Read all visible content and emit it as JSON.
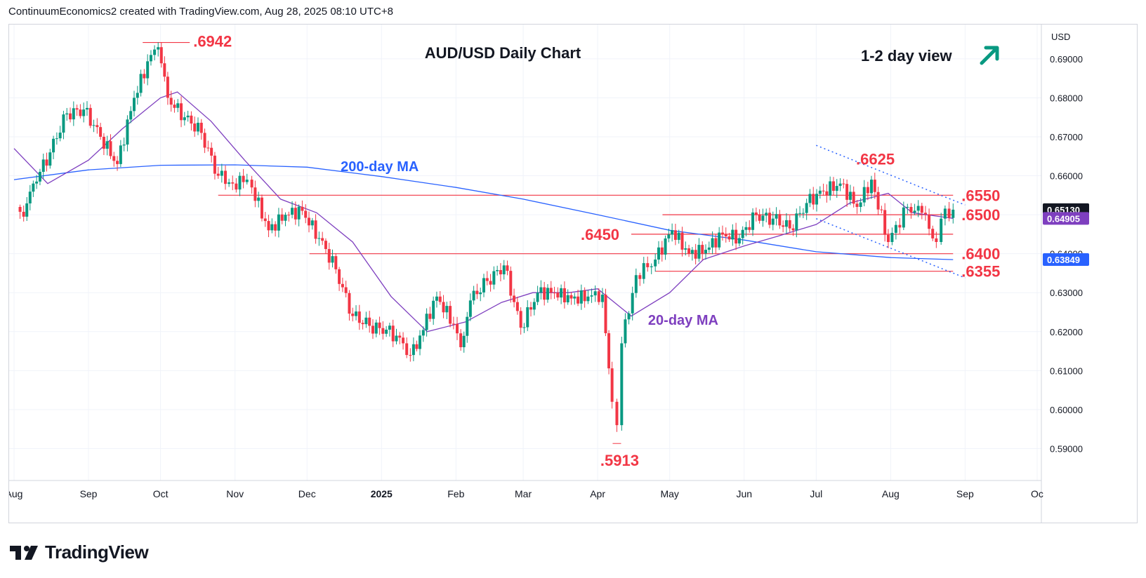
{
  "header": {
    "attribution": "ContinuumEconomics2 created with TradingView.com, Aug 28, 2025 08:10 UTC+8"
  },
  "brand": {
    "name": "TradingView",
    "logo_icon": "tradingview-logo-icon"
  },
  "colors": {
    "up": "#089981",
    "down": "#f23645",
    "ma200": "#2962ff",
    "ma20": "#7e3fbf",
    "level": "#f23645",
    "annotation": "#f23645",
    "channel": "#2962ff",
    "arrow": "#089981",
    "grid": "#f0f3fa",
    "axis_text": "#131722"
  },
  "chart_data": {
    "type": "candlestick",
    "title": "AUD/USD Daily Chart",
    "subtitle": "1-2 day view",
    "view_icon": "arrow-up-right-icon",
    "currency_label": "USD",
    "ylim": [
      0.5818,
      0.6988
    ],
    "y_ticks": [
      {
        "value": 0.69,
        "label": "0.69000"
      },
      {
        "value": 0.68,
        "label": "0.68000"
      },
      {
        "value": 0.67,
        "label": "0.67000"
      },
      {
        "value": 0.66,
        "label": "0.66000"
      },
      {
        "value": 0.65,
        "label": "0.65000"
      },
      {
        "value": 0.64,
        "label": "0.64000"
      },
      {
        "value": 0.63,
        "label": "0.63000"
      },
      {
        "value": 0.62,
        "label": "0.62000"
      },
      {
        "value": 0.61,
        "label": "0.61000"
      },
      {
        "value": 0.6,
        "label": "0.60000"
      },
      {
        "value": 0.59,
        "label": "0.59000"
      }
    ],
    "x_ticks": [
      {
        "date": "2024-08-01",
        "label": "Aug"
      },
      {
        "date": "2024-09-01",
        "label": "Sep"
      },
      {
        "date": "2024-10-01",
        "label": "Oct"
      },
      {
        "date": "2024-11-01",
        "label": "Nov"
      },
      {
        "date": "2024-12-01",
        "label": "Dec"
      },
      {
        "date": "2025-01-01",
        "label": "2025"
      },
      {
        "date": "2025-02-01",
        "label": "Feb"
      },
      {
        "date": "2025-03-01",
        "label": "Mar"
      },
      {
        "date": "2025-04-01",
        "label": "Apr"
      },
      {
        "date": "2025-05-01",
        "label": "May"
      },
      {
        "date": "2025-06-01",
        "label": "Jun"
      },
      {
        "date": "2025-07-01",
        "label": "Jul"
      },
      {
        "date": "2025-08-01",
        "label": "Aug"
      },
      {
        "date": "2025-09-01",
        "label": "Sep"
      },
      {
        "date": "2025-10-01",
        "label": "Oc"
      }
    ],
    "closes": [
      {
        "date": "2024-08-02",
        "close": 0.652
      },
      {
        "date": "2024-08-05",
        "close": 0.6495
      },
      {
        "date": "2024-08-09",
        "close": 0.658
      },
      {
        "date": "2024-08-16",
        "close": 0.666
      },
      {
        "date": "2024-08-23",
        "close": 0.676
      },
      {
        "date": "2024-08-30",
        "close": 0.677
      },
      {
        "date": "2024-09-06",
        "close": 0.67
      },
      {
        "date": "2024-09-13",
        "close": 0.663
      },
      {
        "date": "2024-09-20",
        "close": 0.68
      },
      {
        "date": "2024-09-27",
        "close": 0.691
      },
      {
        "date": "2024-09-30",
        "close": 0.693
      },
      {
        "date": "2024-10-04",
        "close": 0.68
      },
      {
        "date": "2024-10-11",
        "close": 0.675
      },
      {
        "date": "2024-10-18",
        "close": 0.671
      },
      {
        "date": "2024-10-25",
        "close": 0.66
      },
      {
        "date": "2024-10-31",
        "close": 0.658
      },
      {
        "date": "2024-11-06",
        "close": 0.659
      },
      {
        "date": "2024-11-08",
        "close": 0.657
      },
      {
        "date": "2024-11-15",
        "close": 0.646
      },
      {
        "date": "2024-11-22",
        "close": 0.65
      },
      {
        "date": "2024-11-29",
        "close": 0.651
      },
      {
        "date": "2024-12-06",
        "close": 0.644
      },
      {
        "date": "2024-12-13",
        "close": 0.636
      },
      {
        "date": "2024-12-20",
        "close": 0.624
      },
      {
        "date": "2024-12-27",
        "close": 0.6215
      },
      {
        "date": "2025-01-03",
        "close": 0.6205
      },
      {
        "date": "2025-01-10",
        "close": 0.617
      },
      {
        "date": "2025-01-13",
        "close": 0.614
      },
      {
        "date": "2025-01-17",
        "close": 0.619
      },
      {
        "date": "2025-01-24",
        "close": 0.629
      },
      {
        "date": "2025-01-31",
        "close": 0.622
      },
      {
        "date": "2025-02-03",
        "close": 0.616
      },
      {
        "date": "2025-02-07",
        "close": 0.628
      },
      {
        "date": "2025-02-14",
        "close": 0.633
      },
      {
        "date": "2025-02-21",
        "close": 0.637
      },
      {
        "date": "2025-02-28",
        "close": 0.621
      },
      {
        "date": "2025-03-07",
        "close": 0.63
      },
      {
        "date": "2025-03-14",
        "close": 0.63
      },
      {
        "date": "2025-03-21",
        "close": 0.6285
      },
      {
        "date": "2025-03-28",
        "close": 0.629
      },
      {
        "date": "2025-04-03",
        "close": 0.6295
      },
      {
        "date": "2025-04-07",
        "close": 0.602
      },
      {
        "date": "2025-04-09",
        "close": 0.596
      },
      {
        "date": "2025-04-11",
        "close": 0.617
      },
      {
        "date": "2025-04-17",
        "close": 0.6345
      },
      {
        "date": "2025-04-25",
        "close": 0.6385
      },
      {
        "date": "2025-05-02",
        "close": 0.646
      },
      {
        "date": "2025-05-09",
        "close": 0.64
      },
      {
        "date": "2025-05-16",
        "close": 0.641
      },
      {
        "date": "2025-05-23",
        "close": 0.645
      },
      {
        "date": "2025-05-30",
        "close": 0.644
      },
      {
        "date": "2025-06-06",
        "close": 0.65
      },
      {
        "date": "2025-06-13",
        "close": 0.649
      },
      {
        "date": "2025-06-20",
        "close": 0.6465
      },
      {
        "date": "2025-06-27",
        "close": 0.653
      },
      {
        "date": "2025-07-04",
        "close": 0.656
      },
      {
        "date": "2025-07-11",
        "close": 0.658
      },
      {
        "date": "2025-07-18",
        "close": 0.652
      },
      {
        "date": "2025-07-24",
        "close": 0.659
      },
      {
        "date": "2025-07-31",
        "close": 0.643
      },
      {
        "date": "2025-08-08",
        "close": 0.652
      },
      {
        "date": "2025-08-14",
        "close": 0.6505
      },
      {
        "date": "2025-08-20",
        "close": 0.643
      },
      {
        "date": "2025-08-22",
        "close": 0.649
      },
      {
        "date": "2025-08-27",
        "close": 0.6513
      }
    ],
    "ma_200": [
      {
        "date": "2024-08-01",
        "value": 0.659
      },
      {
        "date": "2024-09-01",
        "value": 0.6615
      },
      {
        "date": "2024-10-01",
        "value": 0.6627
      },
      {
        "date": "2024-11-01",
        "value": 0.6628
      },
      {
        "date": "2024-12-01",
        "value": 0.6622
      },
      {
        "date": "2025-01-01",
        "value": 0.6598
      },
      {
        "date": "2025-02-01",
        "value": 0.657
      },
      {
        "date": "2025-03-01",
        "value": 0.654
      },
      {
        "date": "2025-04-01",
        "value": 0.65
      },
      {
        "date": "2025-05-01",
        "value": 0.646
      },
      {
        "date": "2025-06-01",
        "value": 0.6435
      },
      {
        "date": "2025-07-01",
        "value": 0.6405
      },
      {
        "date": "2025-08-01",
        "value": 0.639
      },
      {
        "date": "2025-08-27",
        "value": 0.63849
      }
    ],
    "ma_20": [
      {
        "date": "2024-08-01",
        "value": 0.667
      },
      {
        "date": "2024-08-15",
        "value": 0.658
      },
      {
        "date": "2024-09-01",
        "value": 0.664
      },
      {
        "date": "2024-09-15",
        "value": 0.672
      },
      {
        "date": "2024-10-01",
        "value": 0.68
      },
      {
        "date": "2024-10-08",
        "value": 0.6815
      },
      {
        "date": "2024-10-22",
        "value": 0.674
      },
      {
        "date": "2024-11-05",
        "value": 0.664
      },
      {
        "date": "2024-11-20",
        "value": 0.654
      },
      {
        "date": "2024-12-05",
        "value": 0.6505
      },
      {
        "date": "2024-12-20",
        "value": 0.643
      },
      {
        "date": "2025-01-05",
        "value": 0.629
      },
      {
        "date": "2025-01-20",
        "value": 0.62
      },
      {
        "date": "2025-02-05",
        "value": 0.6225
      },
      {
        "date": "2025-02-20",
        "value": 0.6275
      },
      {
        "date": "2025-03-05",
        "value": 0.63
      },
      {
        "date": "2025-03-20",
        "value": 0.63
      },
      {
        "date": "2025-04-01",
        "value": 0.631
      },
      {
        "date": "2025-04-15",
        "value": 0.624
      },
      {
        "date": "2025-05-01",
        "value": 0.63
      },
      {
        "date": "2025-05-15",
        "value": 0.6385
      },
      {
        "date": "2025-06-01",
        "value": 0.642
      },
      {
        "date": "2025-06-15",
        "value": 0.6445
      },
      {
        "date": "2025-07-01",
        "value": 0.6475
      },
      {
        "date": "2025-07-15",
        "value": 0.653
      },
      {
        "date": "2025-07-31",
        "value": 0.6555
      },
      {
        "date": "2025-08-10",
        "value": 0.6505
      },
      {
        "date": "2025-08-27",
        "value": 0.64905
      }
    ],
    "levels": [
      {
        "label": ".6550",
        "value": 0.655,
        "from": "2024-10-25",
        "to": "2025-08-27"
      },
      {
        "label": ".6500",
        "value": 0.65,
        "from": "2025-04-28",
        "to": "2025-08-27"
      },
      {
        "label": ".6450",
        "value": 0.645,
        "from": "2025-04-15",
        "to": "2025-08-27"
      },
      {
        "label": ".6400",
        "value": 0.64,
        "from": "2024-12-02",
        "to": "2025-08-27"
      },
      {
        "label": ".6355",
        "value": 0.6355,
        "from": "2025-04-25",
        "to": "2025-08-27"
      }
    ],
    "annotations": [
      {
        "label": ".6942",
        "date": "2024-09-30",
        "value": 0.6942,
        "type": "high"
      },
      {
        "label": ".6625",
        "date": "2025-07-24",
        "value": 0.6625,
        "type": "high"
      },
      {
        "label": ".5913",
        "date": "2025-04-09",
        "value": 0.5913,
        "type": "low"
      }
    ],
    "series_labels": [
      {
        "name": "200-day MA",
        "date": "2024-12-15",
        "value": 0.6612,
        "color_key": "ma200"
      },
      {
        "name": "20-day MA",
        "date": "2025-04-22",
        "value": 0.6218,
        "color_key": "ma20"
      }
    ],
    "channel": {
      "upper": {
        "from": {
          "date": "2025-07-01",
          "value": 0.6678
        },
        "to": {
          "date": "2025-09-01",
          "value": 0.6525
        }
      },
      "lower": {
        "from": {
          "date": "2025-07-01",
          "value": 0.649
        },
        "to": {
          "date": "2025-09-01",
          "value": 0.6338
        }
      }
    },
    "price_tags": [
      {
        "label": "0.65130",
        "value": 0.6513,
        "style": "dark"
      },
      {
        "label": "0.64905",
        "value": 0.64905,
        "style": "ma20"
      },
      {
        "label": "0.63849",
        "value": 0.63849,
        "style": "ma200"
      }
    ]
  }
}
